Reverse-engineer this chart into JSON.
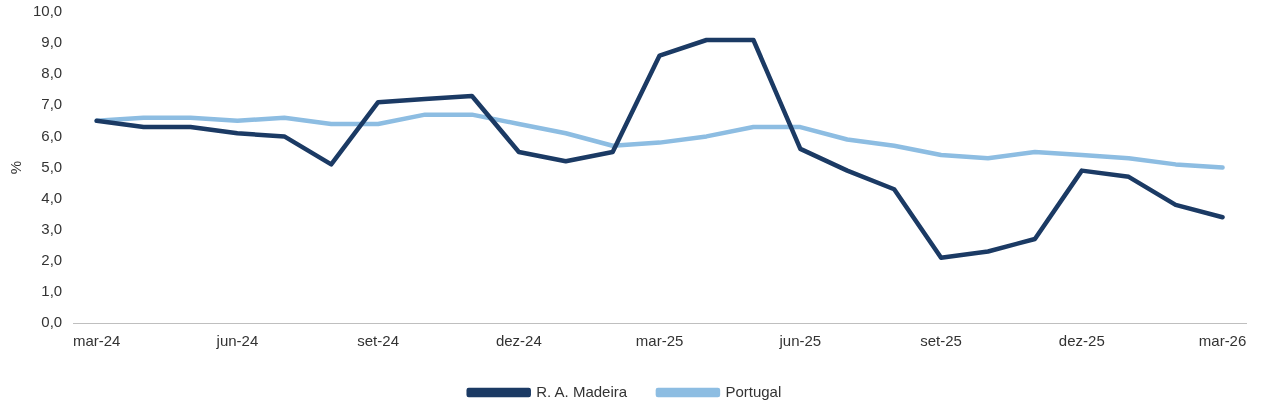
{
  "chart_data": {
    "type": "line",
    "ylabel": "%",
    "categories": [
      "mar-24",
      null,
      null,
      "jun-24",
      null,
      null,
      "set-24",
      null,
      null,
      "dez-24",
      null,
      null,
      "mar-25",
      null,
      null,
      "jun-25",
      null,
      null,
      "set-25",
      null,
      null,
      "dez-25",
      null,
      null,
      "mar-26"
    ],
    "series": [
      {
        "name": "R. A. Madeira",
        "color": "#1b3a64",
        "values": [
          6.5,
          6.3,
          6.3,
          6.1,
          6.0,
          5.1,
          7.1,
          7.2,
          7.3,
          5.5,
          5.2,
          5.5,
          8.6,
          9.1,
          9.1,
          5.6,
          4.9,
          4.3,
          2.1,
          2.3,
          2.7,
          4.9,
          4.7,
          3.8,
          3.4
        ]
      },
      {
        "name": "Portugal",
        "color": "#8dbde2",
        "values": [
          6.5,
          6.6,
          6.6,
          6.5,
          6.6,
          6.4,
          6.4,
          6.7,
          6.7,
          6.4,
          6.1,
          5.7,
          5.8,
          6.0,
          6.3,
          6.3,
          5.9,
          5.7,
          5.4,
          5.3,
          5.5,
          5.4,
          5.3,
          5.1,
          5.0
        ]
      }
    ],
    "ylim": [
      0,
      10
    ],
    "yticks": [
      {
        "value": 0,
        "label": "0,0"
      },
      {
        "value": 1,
        "label": "1,0"
      },
      {
        "value": 2,
        "label": "2,0"
      },
      {
        "value": 3,
        "label": "3,0"
      },
      {
        "value": 4,
        "label": "4,0"
      },
      {
        "value": 5,
        "label": "5,0"
      },
      {
        "value": 6,
        "label": "6,0"
      },
      {
        "value": 7,
        "label": "7,0"
      },
      {
        "value": 8,
        "label": "8,0"
      },
      {
        "value": 9,
        "label": "9,0"
      },
      {
        "value": 10,
        "label": "10,0"
      }
    ],
    "grid": false,
    "legend": "bottom",
    "marker": "none",
    "line_style": "solid"
  }
}
